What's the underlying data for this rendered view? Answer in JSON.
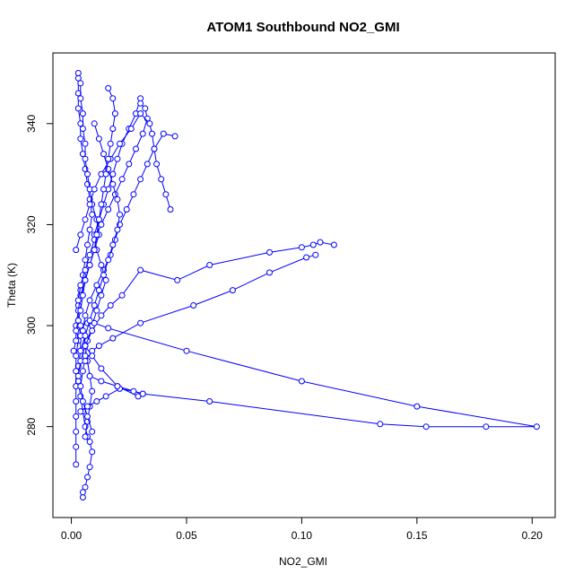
{
  "chart_data": {
    "type": "line",
    "title": "ATOM1 Southbound NO2_GMI",
    "xlabel": "NO2_GMI",
    "ylabel": "Theta (K)",
    "xlim": [
      -0.008,
      0.21
    ],
    "ylim": [
      262,
      354
    ],
    "xticks": [
      0.0,
      0.05,
      0.1,
      0.15,
      0.2
    ],
    "xtick_labels": [
      "0.00",
      "0.05",
      "0.10",
      "0.15",
      "0.20"
    ],
    "yticks": [
      280,
      300,
      320,
      340
    ],
    "ytick_labels": [
      "280",
      "300",
      "320",
      "340"
    ],
    "grid": false,
    "legend": "none",
    "color": "#0000ff",
    "marker": "open-circle",
    "series": [
      {
        "values": [
          [
            0.005,
            266
          ],
          [
            0.005,
            267
          ],
          [
            0.006,
            268
          ],
          [
            0.007,
            270
          ],
          [
            0.008,
            272
          ],
          [
            0.009,
            275
          ],
          [
            0.008,
            277
          ],
          [
            0.007,
            278
          ],
          [
            0.006,
            280
          ],
          [
            0.005,
            283
          ],
          [
            0.004,
            286
          ],
          [
            0.003,
            289
          ],
          [
            0.003,
            292
          ],
          [
            0.004,
            295
          ],
          [
            0.004,
            298
          ],
          [
            0.003,
            301
          ],
          [
            0.003,
            304
          ],
          [
            0.004,
            307
          ],
          [
            0.005,
            310
          ],
          [
            0.006,
            313
          ],
          [
            0.007,
            316
          ],
          [
            0.008,
            319
          ],
          [
            0.009,
            322
          ],
          [
            0.008,
            325
          ],
          [
            0.007,
            328
          ],
          [
            0.006,
            331
          ],
          [
            0.005,
            334
          ],
          [
            0.004,
            337
          ],
          [
            0.004,
            340
          ],
          [
            0.003,
            343
          ],
          [
            0.003,
            346
          ],
          [
            0.003,
            349
          ],
          [
            0.003,
            350
          ]
        ]
      },
      {
        "values": [
          [
            0.002,
            272.5
          ],
          [
            0.002,
            276
          ],
          [
            0.002,
            279
          ],
          [
            0.002,
            282
          ],
          [
            0.002,
            285
          ],
          [
            0.002,
            288
          ],
          [
            0.002,
            291
          ],
          [
            0.002,
            294
          ],
          [
            0.003,
            297
          ],
          [
            0.002,
            300
          ],
          [
            0.003,
            303
          ],
          [
            0.004,
            306
          ],
          [
            0.006,
            309
          ],
          [
            0.008,
            312
          ],
          [
            0.01,
            315
          ],
          [
            0.012,
            318
          ],
          [
            0.011,
            321
          ],
          [
            0.009,
            324
          ],
          [
            0.008,
            327
          ],
          [
            0.007,
            330
          ],
          [
            0.006,
            333
          ],
          [
            0.006,
            336
          ],
          [
            0.005,
            339
          ],
          [
            0.005,
            342
          ],
          [
            0.004,
            345
          ],
          [
            0.004,
            348
          ]
        ]
      },
      {
        "values": [
          [
            0.006,
            278
          ],
          [
            0.007,
            281
          ],
          [
            0.008,
            284
          ],
          [
            0.009,
            287
          ],
          [
            0.008,
            290
          ],
          [
            0.007,
            293
          ],
          [
            0.006,
            296
          ],
          [
            0.005,
            299
          ],
          [
            0.006,
            302
          ],
          [
            0.008,
            305
          ],
          [
            0.011,
            308
          ],
          [
            0.014,
            311
          ],
          [
            0.017,
            314
          ],
          [
            0.019,
            317
          ],
          [
            0.021,
            320
          ],
          [
            0.024,
            323
          ],
          [
            0.027,
            326
          ],
          [
            0.03,
            329
          ],
          [
            0.033,
            332
          ],
          [
            0.036,
            335
          ],
          [
            0.04,
            338
          ],
          [
            0.045,
            337.5
          ]
        ]
      },
      {
        "values": [
          [
            0.009,
            279
          ],
          [
            0.007,
            282
          ],
          [
            0.005,
            285
          ],
          [
            0.004,
            288
          ],
          [
            0.005,
            291
          ],
          [
            0.006,
            294
          ],
          [
            0.007,
            297
          ],
          [
            0.009,
            300
          ],
          [
            0.011,
            303
          ],
          [
            0.013,
            306
          ],
          [
            0.015,
            309
          ],
          [
            0.013,
            312
          ],
          [
            0.011,
            315
          ],
          [
            0.01,
            318
          ],
          [
            0.012,
            321
          ],
          [
            0.014,
            324
          ],
          [
            0.016,
            327
          ],
          [
            0.018,
            330
          ],
          [
            0.02,
            333
          ],
          [
            0.022,
            336
          ],
          [
            0.025,
            339
          ],
          [
            0.028,
            342
          ],
          [
            0.03,
            345
          ]
        ]
      },
      {
        "values": [
          [
            0.003,
            290
          ],
          [
            0.004,
            293
          ],
          [
            0.006,
            296
          ],
          [
            0.009,
            299
          ],
          [
            0.013,
            302
          ],
          [
            0.017,
            304
          ],
          [
            0.022,
            306
          ],
          [
            0.03,
            311
          ],
          [
            0.046,
            309
          ],
          [
            0.06,
            312
          ],
          [
            0.086,
            314.5
          ],
          [
            0.1,
            315.5
          ],
          [
            0.105,
            316
          ],
          [
            0.108,
            316.5
          ],
          [
            0.114,
            316
          ]
        ]
      },
      {
        "values": [
          [
            0.006,
            293
          ],
          [
            0.009,
            295
          ],
          [
            0.012,
            296
          ],
          [
            0.018,
            297.5
          ],
          [
            0.03,
            300.5
          ],
          [
            0.053,
            304
          ],
          [
            0.07,
            307
          ],
          [
            0.086,
            310.5
          ],
          [
            0.102,
            313.5
          ],
          [
            0.106,
            314
          ]
        ]
      },
      {
        "values": [
          [
            0.004,
            300
          ],
          [
            0.007,
            300.5
          ],
          [
            0.01,
            300.5
          ],
          [
            0.016,
            299.5
          ],
          [
            0.05,
            295
          ],
          [
            0.1,
            289
          ],
          [
            0.15,
            284
          ],
          [
            0.202,
            280
          ],
          [
            0.18,
            280
          ],
          [
            0.154,
            280
          ],
          [
            0.134,
            280.5
          ],
          [
            0.06,
            285
          ],
          [
            0.031,
            286.5
          ],
          [
            0.02,
            288
          ],
          [
            0.013,
            289
          ],
          [
            0.008,
            290
          ]
        ]
      },
      {
        "values": [
          [
            0.004,
            283
          ],
          [
            0.007,
            284
          ],
          [
            0.011,
            285
          ],
          [
            0.015,
            286
          ],
          [
            0.021,
            287.5
          ],
          [
            0.027,
            287
          ],
          [
            0.031,
            286.5
          ],
          [
            0.029,
            286
          ],
          [
            0.02,
            288
          ],
          [
            0.013,
            291.5
          ],
          [
            0.009,
            294
          ],
          [
            0.006,
            296
          ]
        ]
      },
      {
        "values": [
          [
            0.003,
            305
          ],
          [
            0.004,
            308
          ],
          [
            0.006,
            311
          ],
          [
            0.008,
            314
          ],
          [
            0.01,
            317
          ],
          [
            0.013,
            320
          ],
          [
            0.016,
            323
          ],
          [
            0.019,
            326
          ],
          [
            0.022,
            329
          ],
          [
            0.025,
            332
          ],
          [
            0.028,
            335
          ],
          [
            0.031,
            338
          ],
          [
            0.033,
            341
          ],
          [
            0.032,
            343
          ],
          [
            0.03,
            344
          ]
        ]
      },
      {
        "values": [
          [
            0.002,
            315
          ],
          [
            0.004,
            318
          ],
          [
            0.006,
            321
          ],
          [
            0.008,
            324
          ],
          [
            0.01,
            327
          ],
          [
            0.013,
            330
          ],
          [
            0.017,
            333
          ],
          [
            0.021,
            336
          ],
          [
            0.026,
            339
          ],
          [
            0.03,
            342
          ],
          [
            0.034,
            340
          ],
          [
            0.035,
            338
          ],
          [
            0.036,
            335
          ],
          [
            0.037,
            332
          ],
          [
            0.039,
            329
          ],
          [
            0.041,
            326
          ],
          [
            0.043,
            323
          ]
        ]
      },
      {
        "values": [
          [
            0.01,
            340
          ],
          [
            0.012,
            337
          ],
          [
            0.014,
            334
          ],
          [
            0.016,
            331
          ],
          [
            0.018,
            328
          ],
          [
            0.02,
            325
          ],
          [
            0.021,
            322
          ],
          [
            0.02,
            319
          ],
          [
            0.018,
            316
          ],
          [
            0.016,
            313
          ],
          [
            0.014,
            310
          ],
          [
            0.012,
            307
          ],
          [
            0.01,
            304
          ],
          [
            0.008,
            301
          ],
          [
            0.006,
            298
          ],
          [
            0.004,
            295
          ]
        ]
      },
      {
        "values": [
          [
            0.001,
            295
          ],
          [
            0.002,
            297
          ],
          [
            0.002,
            299
          ],
          [
            0.003,
            301
          ],
          [
            0.004,
            303
          ],
          [
            0.005,
            306
          ],
          [
            0.006,
            309
          ],
          [
            0.008,
            312
          ],
          [
            0.01,
            315
          ],
          [
            0.011,
            318
          ],
          [
            0.012,
            321
          ],
          [
            0.013,
            324
          ],
          [
            0.014,
            327
          ],
          [
            0.015,
            330
          ],
          [
            0.016,
            333
          ],
          [
            0.017,
            336
          ],
          [
            0.018,
            339
          ],
          [
            0.019,
            342
          ],
          [
            0.018,
            345
          ],
          [
            0.016,
            347
          ]
        ]
      }
    ]
  }
}
